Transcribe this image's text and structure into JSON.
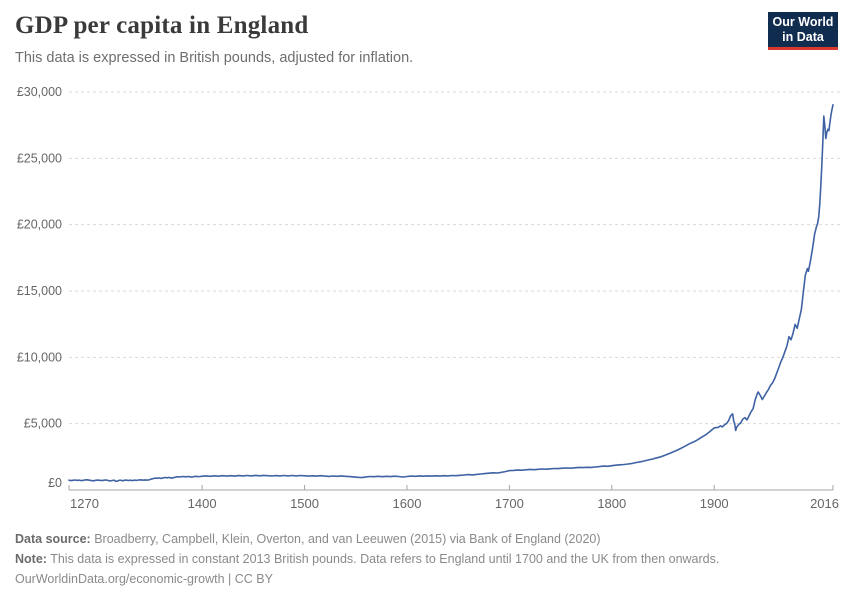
{
  "header": {
    "title": "GDP per capita in England",
    "subtitle": "This data is expressed in British pounds, adjusted for inflation."
  },
  "logo": {
    "line1": "Our World",
    "line2": "in Data",
    "bg_color": "#102d50",
    "accent_color": "#d93a2d"
  },
  "chart_data": {
    "type": "line",
    "title": "GDP per capita in England",
    "series_name": "GDP per capita (British pounds, adjusted for inflation)",
    "xlabel": "",
    "ylabel": "",
    "xlim": [
      1270,
      2016
    ],
    "ylim": [
      0,
      30000
    ],
    "grid": "horizontal-dashed",
    "line_color": "#3e62a3",
    "x_ticks": [
      1270,
      1400,
      1500,
      1600,
      1700,
      1800,
      1900,
      2016
    ],
    "y_ticks": [
      0,
      5000,
      10000,
      15000,
      20000,
      25000,
      30000
    ],
    "y_tick_labels": [
      "£0",
      "£5,000",
      "£10,000",
      "£15,000",
      "£20,000",
      "£25,000",
      "£30,000"
    ],
    "points": [
      [
        1270,
        740
      ],
      [
        1272,
        705
      ],
      [
        1274,
        730
      ],
      [
        1276,
        755
      ],
      [
        1278,
        720
      ],
      [
        1280,
        745
      ],
      [
        1282,
        710
      ],
      [
        1284,
        730
      ],
      [
        1286,
        760
      ],
      [
        1288,
        770
      ],
      [
        1290,
        735
      ],
      [
        1292,
        705
      ],
      [
        1294,
        690
      ],
      [
        1296,
        730
      ],
      [
        1298,
        750
      ],
      [
        1300,
        730
      ],
      [
        1302,
        705
      ],
      [
        1304,
        740
      ],
      [
        1306,
        755
      ],
      [
        1308,
        720
      ],
      [
        1310,
        680
      ],
      [
        1312,
        715
      ],
      [
        1314,
        740
      ],
      [
        1316,
        650
      ],
      [
        1318,
        700
      ],
      [
        1320,
        745
      ],
      [
        1322,
        690
      ],
      [
        1324,
        730
      ],
      [
        1326,
        750
      ],
      [
        1328,
        715
      ],
      [
        1330,
        735
      ],
      [
        1332,
        705
      ],
      [
        1334,
        745
      ],
      [
        1336,
        720
      ],
      [
        1338,
        755
      ],
      [
        1340,
        770
      ],
      [
        1342,
        740
      ],
      [
        1344,
        760
      ],
      [
        1346,
        745
      ],
      [
        1348,
        760
      ],
      [
        1350,
        815
      ],
      [
        1352,
        860
      ],
      [
        1354,
        895
      ],
      [
        1356,
        880
      ],
      [
        1358,
        910
      ],
      [
        1360,
        870
      ],
      [
        1362,
        920
      ],
      [
        1364,
        940
      ],
      [
        1366,
        920
      ],
      [
        1368,
        950
      ],
      [
        1370,
        890
      ],
      [
        1372,
        930
      ],
      [
        1374,
        970
      ],
      [
        1376,
        1000
      ],
      [
        1378,
        980
      ],
      [
        1380,
        1000
      ],
      [
        1382,
        1015
      ],
      [
        1384,
        990
      ],
      [
        1386,
        1020
      ],
      [
        1388,
        1000
      ],
      [
        1390,
        975
      ],
      [
        1392,
        1010
      ],
      [
        1394,
        1030
      ],
      [
        1396,
        1005
      ],
      [
        1398,
        1020
      ],
      [
        1400,
        1040
      ],
      [
        1404,
        1060
      ],
      [
        1408,
        1035
      ],
      [
        1412,
        1070
      ],
      [
        1416,
        1040
      ],
      [
        1420,
        1075
      ],
      [
        1424,
        1050
      ],
      [
        1428,
        1080
      ],
      [
        1432,
        1050
      ],
      [
        1436,
        1085
      ],
      [
        1440,
        1060
      ],
      [
        1444,
        1090
      ],
      [
        1448,
        1065
      ],
      [
        1452,
        1100
      ],
      [
        1456,
        1070
      ],
      [
        1460,
        1100
      ],
      [
        1464,
        1075
      ],
      [
        1468,
        1055
      ],
      [
        1472,
        1085
      ],
      [
        1476,
        1060
      ],
      [
        1480,
        1090
      ],
      [
        1484,
        1060
      ],
      [
        1488,
        1090
      ],
      [
        1492,
        1065
      ],
      [
        1496,
        1095
      ],
      [
        1500,
        1070
      ],
      [
        1504,
        1045
      ],
      [
        1508,
        1070
      ],
      [
        1512,
        1050
      ],
      [
        1516,
        1075
      ],
      [
        1520,
        1050
      ],
      [
        1524,
        1025
      ],
      [
        1528,
        1055
      ],
      [
        1532,
        1030
      ],
      [
        1536,
        1060
      ],
      [
        1540,
        1035
      ],
      [
        1544,
        1010
      ],
      [
        1548,
        985
      ],
      [
        1552,
        960
      ],
      [
        1556,
        935
      ],
      [
        1560,
        990
      ],
      [
        1564,
        1020
      ],
      [
        1568,
        1000
      ],
      [
        1572,
        1030
      ],
      [
        1576,
        1005
      ],
      [
        1580,
        1030
      ],
      [
        1584,
        1010
      ],
      [
        1588,
        1040
      ],
      [
        1592,
        1015
      ],
      [
        1596,
        980
      ],
      [
        1600,
        1020
      ],
      [
        1604,
        1050
      ],
      [
        1608,
        1030
      ],
      [
        1612,
        1060
      ],
      [
        1616,
        1040
      ],
      [
        1620,
        1065
      ],
      [
        1624,
        1045
      ],
      [
        1628,
        1070
      ],
      [
        1632,
        1050
      ],
      [
        1636,
        1080
      ],
      [
        1640,
        1060
      ],
      [
        1644,
        1090
      ],
      [
        1648,
        1075
      ],
      [
        1652,
        1105
      ],
      [
        1656,
        1130
      ],
      [
        1660,
        1160
      ],
      [
        1664,
        1140
      ],
      [
        1668,
        1175
      ],
      [
        1672,
        1205
      ],
      [
        1676,
        1235
      ],
      [
        1680,
        1270
      ],
      [
        1684,
        1295
      ],
      [
        1688,
        1285
      ],
      [
        1692,
        1325
      ],
      [
        1696,
        1390
      ],
      [
        1700,
        1465
      ],
      [
        1704,
        1480
      ],
      [
        1708,
        1500
      ],
      [
        1712,
        1490
      ],
      [
        1716,
        1525
      ],
      [
        1720,
        1550
      ],
      [
        1724,
        1530
      ],
      [
        1728,
        1560
      ],
      [
        1732,
        1585
      ],
      [
        1736,
        1570
      ],
      [
        1740,
        1600
      ],
      [
        1744,
        1620
      ],
      [
        1748,
        1610
      ],
      [
        1752,
        1640
      ],
      [
        1756,
        1660
      ],
      [
        1760,
        1645
      ],
      [
        1764,
        1675
      ],
      [
        1768,
        1700
      ],
      [
        1772,
        1685
      ],
      [
        1776,
        1710
      ],
      [
        1780,
        1700
      ],
      [
        1784,
        1730
      ],
      [
        1788,
        1765
      ],
      [
        1792,
        1800
      ],
      [
        1796,
        1790
      ],
      [
        1800,
        1830
      ],
      [
        1804,
        1870
      ],
      [
        1808,
        1900
      ],
      [
        1812,
        1925
      ],
      [
        1816,
        1960
      ],
      [
        1820,
        2005
      ],
      [
        1824,
        2070
      ],
      [
        1828,
        2125
      ],
      [
        1832,
        2195
      ],
      [
        1836,
        2270
      ],
      [
        1840,
        2335
      ],
      [
        1844,
        2425
      ],
      [
        1848,
        2500
      ],
      [
        1852,
        2620
      ],
      [
        1856,
        2745
      ],
      [
        1860,
        2870
      ],
      [
        1864,
        3010
      ],
      [
        1868,
        3160
      ],
      [
        1872,
        3325
      ],
      [
        1876,
        3490
      ],
      [
        1880,
        3625
      ],
      [
        1884,
        3790
      ],
      [
        1888,
        3985
      ],
      [
        1892,
        4175
      ],
      [
        1896,
        4420
      ],
      [
        1900,
        4680
      ],
      [
        1902,
        4705
      ],
      [
        1904,
        4720
      ],
      [
        1906,
        4835
      ],
      [
        1908,
        4760
      ],
      [
        1910,
        4905
      ],
      [
        1912,
        5015
      ],
      [
        1914,
        5205
      ],
      [
        1916,
        5585
      ],
      [
        1918,
        5745
      ],
      [
        1919,
        5205
      ],
      [
        1920,
        4985
      ],
      [
        1921,
        4485
      ],
      [
        1922,
        4735
      ],
      [
        1924,
        4955
      ],
      [
        1926,
        5065
      ],
      [
        1928,
        5355
      ],
      [
        1930,
        5455
      ],
      [
        1932,
        5285
      ],
      [
        1934,
        5585
      ],
      [
        1936,
        5905
      ],
      [
        1938,
        6125
      ],
      [
        1940,
        6805
      ],
      [
        1942,
        7255
      ],
      [
        1943,
        7385
      ],
      [
        1945,
        7125
      ],
      [
        1947,
        6825
      ],
      [
        1949,
        7085
      ],
      [
        1951,
        7345
      ],
      [
        1953,
        7585
      ],
      [
        1955,
        7885
      ],
      [
        1957,
        8085
      ],
      [
        1959,
        8385
      ],
      [
        1961,
        8805
      ],
      [
        1963,
        9205
      ],
      [
        1965,
        9655
      ],
      [
        1967,
        9985
      ],
      [
        1969,
        10425
      ],
      [
        1971,
        10855
      ],
      [
        1973,
        11555
      ],
      [
        1975,
        11325
      ],
      [
        1977,
        11825
      ],
      [
        1979,
        12485
      ],
      [
        1981,
        12185
      ],
      [
        1983,
        12885
      ],
      [
        1985,
        13585
      ],
      [
        1987,
        14885
      ],
      [
        1989,
        16185
      ],
      [
        1991,
        16685
      ],
      [
        1992,
        16485
      ],
      [
        1994,
        17285
      ],
      [
        1996,
        18185
      ],
      [
        1998,
        19285
      ],
      [
        2000,
        19885
      ],
      [
        2001,
        20085
      ],
      [
        2002,
        20585
      ],
      [
        2003,
        21485
      ],
      [
        2004,
        22785
      ],
      [
        2005,
        24285
      ],
      [
        2006,
        26185
      ],
      [
        2007,
        28185
      ],
      [
        2008,
        27485
      ],
      [
        2009,
        26485
      ],
      [
        2010,
        26985
      ],
      [
        2011,
        27185
      ],
      [
        2012,
        27085
      ],
      [
        2013,
        27685
      ],
      [
        2014,
        28285
      ],
      [
        2015,
        28685
      ],
      [
        2016,
        29035
      ]
    ]
  },
  "footer": {
    "source_label": "Data source:",
    "source_text": " Broadberry, Campbell, Klein, Overton, and van Leeuwen (2015) via Bank of England (2020)",
    "note_label": "Note:",
    "note_text": " This data is expressed in constant 2013 British pounds. Data refers to England until 1700 and the UK from then onwards.",
    "link": "OurWorldinData.org/economic-growth",
    "separator": " | ",
    "license": "CC BY"
  }
}
